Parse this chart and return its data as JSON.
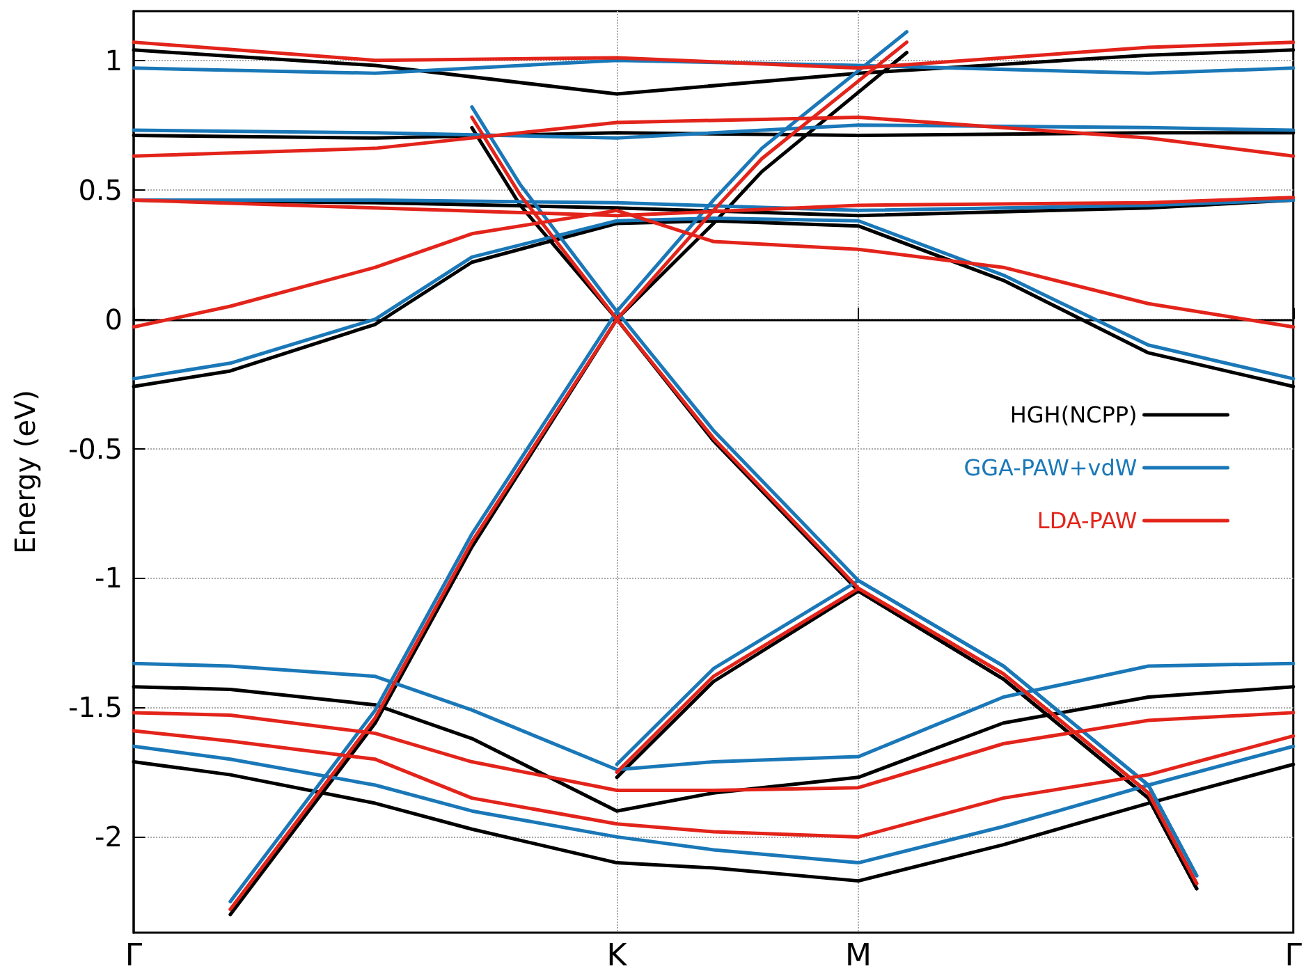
{
  "chart_data": {
    "type": "line",
    "ylabel": "Energy (eV)",
    "categories": [
      "Γ",
      null,
      null,
      null,
      null,
      null,
      null,
      null,
      null,
      null,
      "K",
      null,
      null,
      null,
      null,
      "M",
      null,
      null,
      null,
      null,
      null,
      null,
      null,
      null,
      "Γ"
    ],
    "ylim": [
      -2.37,
      1.19
    ],
    "yticks": [
      -2,
      -1.5,
      -1,
      -0.5,
      0,
      0.5,
      1
    ],
    "grid": true,
    "legend": "right",
    "marker": "none",
    "line_style": "solid",
    "series": [
      {
        "name": "HGH(NCPP)",
        "color": "#000000",
        "values": [
          null,
          null,
          -2.3,
          null,
          null,
          -1.56,
          null,
          -0.88,
          null,
          null,
          0,
          null,
          -0.47,
          null,
          null,
          -1.05,
          null,
          null,
          -1.39,
          null,
          null,
          -1.85,
          -2.2,
          null,
          null
        ]
      },
      {
        "color": "#000000",
        "values": [
          null,
          null,
          null,
          null,
          null,
          null,
          null,
          null,
          null,
          null,
          -1.77,
          null,
          -1.4,
          null,
          null,
          -1.05,
          null,
          null,
          -1.39,
          null,
          null,
          -1.85,
          -2.2,
          null,
          null
        ]
      },
      {
        "color": "#000000",
        "values": [
          null,
          null,
          null,
          null,
          null,
          null,
          null,
          0.74,
          0.44,
          null,
          0,
          null,
          0.37,
          0.57,
          null,
          null,
          1.03,
          null,
          null,
          null,
          null,
          null,
          null,
          null,
          null
        ]
      },
      {
        "color": "#000000",
        "values": [
          -0.26,
          null,
          -0.2,
          null,
          null,
          -0.02,
          null,
          0.22,
          null,
          null,
          0.37,
          null,
          0.38,
          null,
          null,
          0.36,
          null,
          null,
          0.15,
          null,
          null,
          -0.13,
          null,
          null,
          -0.26
        ]
      },
      {
        "color": "#000000",
        "values": [
          0.46,
          null,
          null,
          null,
          null,
          0.45,
          null,
          null,
          null,
          null,
          0.43,
          null,
          null,
          null,
          null,
          0.4,
          null,
          null,
          null,
          null,
          null,
          0.43,
          null,
          null,
          0.46
        ]
      },
      {
        "color": "#000000",
        "values": [
          0.71,
          null,
          null,
          null,
          null,
          0.7,
          null,
          null,
          null,
          null,
          0.72,
          null,
          null,
          null,
          null,
          0.71,
          null,
          null,
          null,
          null,
          null,
          0.72,
          null,
          null,
          0.72
        ]
      },
      {
        "color": "#000000",
        "values": [
          1.04,
          null,
          null,
          null,
          null,
          0.98,
          null,
          null,
          null,
          null,
          0.87,
          null,
          null,
          null,
          null,
          0.95,
          null,
          null,
          null,
          null,
          null,
          1.02,
          null,
          null,
          1.04
        ]
      },
      {
        "color": "#000000",
        "values": [
          -1.42,
          null,
          -1.43,
          null,
          null,
          -1.49,
          null,
          -1.62,
          null,
          null,
          -1.9,
          null,
          -1.83,
          null,
          null,
          -1.77,
          null,
          null,
          -1.56,
          null,
          null,
          -1.46,
          null,
          null,
          -1.42
        ]
      },
      {
        "color": "#000000",
        "values": [
          -1.71,
          null,
          -1.76,
          null,
          null,
          -1.87,
          null,
          -1.97,
          null,
          null,
          -2.1,
          null,
          -2.12,
          null,
          null,
          -2.17,
          null,
          null,
          -2.03,
          null,
          null,
          -1.87,
          null,
          null,
          -1.72
        ]
      },
      {
        "name": "GGA-PAW+vdW",
        "color": "#1a78b8",
        "values": [
          null,
          null,
          -2.25,
          null,
          null,
          -1.51,
          null,
          -0.83,
          null,
          null,
          0.03,
          null,
          -0.43,
          null,
          null,
          -1.01,
          null,
          null,
          -1.34,
          null,
          null,
          -1.8,
          -2.15,
          null,
          null
        ]
      },
      {
        "color": "#1a78b8",
        "values": [
          null,
          null,
          null,
          null,
          null,
          null,
          null,
          null,
          null,
          null,
          -1.72,
          null,
          -1.35,
          null,
          null,
          -1.01,
          null,
          null,
          -1.34,
          null,
          null,
          -1.8,
          -2.15,
          null,
          null
        ]
      },
      {
        "color": "#1a78b8",
        "values": [
          null,
          null,
          null,
          null,
          null,
          null,
          null,
          0.82,
          0.52,
          null,
          0.03,
          null,
          0.46,
          0.66,
          null,
          null,
          1.11,
          null,
          null,
          null,
          null,
          null,
          null,
          null,
          null
        ]
      },
      {
        "color": "#1a78b8",
        "values": [
          -0.23,
          null,
          -0.17,
          null,
          null,
          0,
          null,
          0.24,
          null,
          null,
          0.38,
          null,
          0.39,
          null,
          null,
          0.38,
          null,
          null,
          0.17,
          null,
          null,
          -0.1,
          null,
          null,
          -0.23
        ]
      },
      {
        "color": "#1a78b8",
        "values": [
          0.46,
          null,
          null,
          null,
          null,
          0.46,
          null,
          null,
          null,
          null,
          0.45,
          null,
          null,
          null,
          null,
          0.42,
          null,
          null,
          null,
          null,
          null,
          0.44,
          null,
          null,
          0.46
        ]
      },
      {
        "color": "#1a78b8",
        "values": [
          0.73,
          null,
          null,
          null,
          null,
          0.72,
          null,
          null,
          null,
          null,
          0.7,
          null,
          null,
          null,
          null,
          0.75,
          null,
          null,
          null,
          null,
          null,
          0.74,
          null,
          null,
          0.73
        ]
      },
      {
        "color": "#1a78b8",
        "values": [
          0.97,
          null,
          null,
          null,
          null,
          0.95,
          null,
          null,
          null,
          null,
          1,
          null,
          null,
          null,
          null,
          0.98,
          null,
          null,
          null,
          null,
          null,
          0.95,
          null,
          null,
          0.97
        ]
      },
      {
        "color": "#1a78b8",
        "values": [
          -1.33,
          null,
          -1.34,
          null,
          null,
          -1.38,
          null,
          -1.51,
          null,
          null,
          -1.74,
          null,
          -1.71,
          null,
          null,
          -1.69,
          null,
          null,
          -1.46,
          null,
          null,
          -1.34,
          null,
          null,
          -1.33
        ]
      },
      {
        "color": "#1a78b8",
        "values": [
          -1.65,
          null,
          -1.7,
          null,
          null,
          -1.8,
          null,
          -1.9,
          null,
          null,
          -2,
          null,
          -2.05,
          null,
          null,
          -2.1,
          null,
          null,
          -1.96,
          null,
          null,
          -1.8,
          null,
          null,
          -1.65
        ]
      },
      {
        "name": "LDA-PAW",
        "color": "#e3241b",
        "values": [
          null,
          null,
          -2.28,
          null,
          null,
          -1.54,
          null,
          -0.86,
          null,
          null,
          0,
          null,
          -0.46,
          null,
          null,
          -1.04,
          null,
          null,
          -1.37,
          null,
          null,
          -1.83,
          -2.18,
          null,
          null
        ]
      },
      {
        "color": "#e3241b",
        "values": [
          null,
          null,
          null,
          null,
          null,
          null,
          null,
          null,
          null,
          null,
          -1.75,
          null,
          -1.38,
          null,
          null,
          -1.04,
          null,
          null,
          -1.37,
          null,
          null,
          -1.83,
          -2.18,
          null,
          null
        ]
      },
      {
        "color": "#e3241b",
        "values": [
          null,
          null,
          null,
          null,
          null,
          null,
          null,
          0.78,
          0.48,
          null,
          0,
          null,
          0.42,
          0.62,
          null,
          null,
          1.07,
          null,
          null,
          null,
          null,
          null,
          null,
          null,
          null
        ]
      },
      {
        "color": "#e3241b",
        "values": [
          -0.03,
          null,
          0.05,
          null,
          null,
          0.2,
          null,
          0.33,
          null,
          null,
          0.42,
          null,
          0.3,
          null,
          null,
          0.27,
          null,
          null,
          0.2,
          null,
          null,
          0.06,
          null,
          null,
          -0.03
        ]
      },
      {
        "color": "#e3241b",
        "values": [
          0.46,
          null,
          null,
          null,
          null,
          0.43,
          null,
          null,
          null,
          null,
          0.4,
          null,
          null,
          null,
          null,
          0.44,
          null,
          null,
          null,
          null,
          null,
          0.45,
          null,
          null,
          0.47
        ]
      },
      {
        "color": "#e3241b",
        "values": [
          0.63,
          null,
          null,
          null,
          null,
          0.66,
          null,
          null,
          null,
          null,
          0.76,
          null,
          null,
          null,
          null,
          0.78,
          null,
          null,
          null,
          null,
          null,
          0.7,
          null,
          null,
          0.63
        ]
      },
      {
        "color": "#e3241b",
        "values": [
          1.07,
          null,
          null,
          null,
          null,
          1,
          null,
          null,
          null,
          null,
          1.01,
          null,
          null,
          null,
          null,
          0.97,
          null,
          null,
          null,
          null,
          null,
          1.05,
          null,
          null,
          1.07
        ]
      },
      {
        "color": "#e3241b",
        "values": [
          -1.52,
          null,
          -1.53,
          null,
          null,
          -1.6,
          null,
          -1.71,
          null,
          null,
          -1.82,
          null,
          -1.82,
          null,
          null,
          -1.81,
          null,
          null,
          -1.64,
          null,
          null,
          -1.55,
          null,
          null,
          -1.52
        ]
      },
      {
        "color": "#e3241b",
        "values": [
          -1.59,
          null,
          -1.63,
          null,
          null,
          -1.7,
          null,
          -1.85,
          null,
          null,
          -1.95,
          null,
          -1.98,
          null,
          null,
          -2,
          null,
          null,
          -1.85,
          null,
          null,
          -1.76,
          null,
          null,
          -1.61
        ]
      }
    ]
  }
}
